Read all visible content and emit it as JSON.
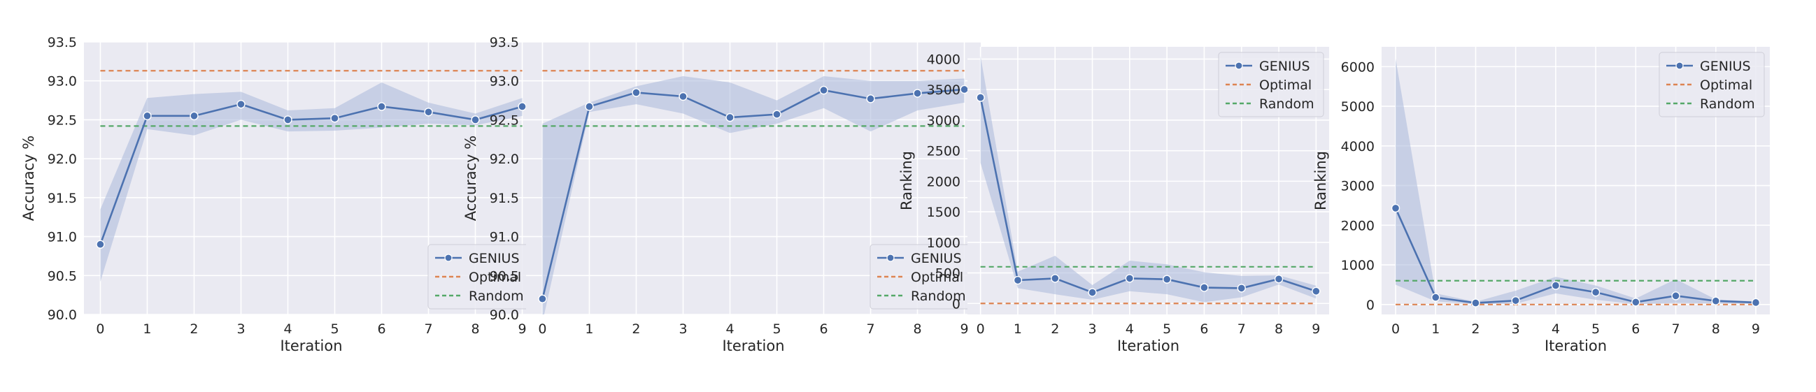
{
  "colors": {
    "background": "#eaeaf2",
    "grid": "#ffffff",
    "genius": "#4c72b0",
    "band": "#a9b8da",
    "optimal": "#dd8452",
    "random": "#55a868",
    "text": "#262626"
  },
  "chart_data": [
    {
      "type": "line",
      "xlabel": "Iteration",
      "ylabel": "Accuracy %",
      "x": [
        0,
        1,
        2,
        3,
        4,
        5,
        6,
        7,
        8,
        9
      ],
      "xticks": [
        "0",
        "1",
        "2",
        "3",
        "4",
        "5",
        "6",
        "7",
        "8",
        "9"
      ],
      "xlim": [
        -0.35,
        9.35
      ],
      "ylim": [
        90.0,
        93.5
      ],
      "yticks": [
        90.0,
        90.5,
        91.0,
        91.5,
        92.0,
        92.5,
        93.0,
        93.5
      ],
      "ytick_labels": [
        "90.0",
        "90.5",
        "91.0",
        "91.5",
        "92.0",
        "92.5",
        "93.0",
        "93.5"
      ],
      "grid": true,
      "legend_position": "bottom-right",
      "series": [
        {
          "name": "GENIUS",
          "style": "solid-marker",
          "values": [
            90.9,
            92.55,
            92.55,
            92.7,
            92.5,
            92.52,
            92.67,
            92.6,
            92.5,
            92.67
          ],
          "lower": [
            90.42,
            92.38,
            92.3,
            92.5,
            92.35,
            92.36,
            92.4,
            92.45,
            92.43,
            92.55
          ],
          "upper": [
            91.35,
            92.78,
            92.83,
            92.86,
            92.62,
            92.65,
            92.98,
            92.72,
            92.58,
            92.78
          ]
        },
        {
          "name": "Optimal",
          "style": "dashed",
          "constant": 93.13
        },
        {
          "name": "Random",
          "style": "dashed",
          "constant": 92.42
        }
      ]
    },
    {
      "type": "line",
      "xlabel": "Iteration",
      "ylabel": "Accuracy %",
      "x": [
        0,
        1,
        2,
        3,
        4,
        5,
        6,
        7,
        8,
        9
      ],
      "xticks": [
        "0",
        "1",
        "2",
        "3",
        "4",
        "5",
        "6",
        "7",
        "8",
        "9"
      ],
      "xlim": [
        -0.35,
        9.35
      ],
      "ylim": [
        90.0,
        93.5
      ],
      "yticks": [
        90.0,
        90.5,
        91.0,
        91.5,
        92.0,
        92.5,
        93.0,
        93.5
      ],
      "ytick_labels": [
        "90.0",
        "90.5",
        "91.0",
        "91.5",
        "92.0",
        "92.5",
        "93.0",
        "93.5"
      ],
      "grid": true,
      "legend_position": "bottom-right",
      "series": [
        {
          "name": "GENIUS",
          "style": "solid-marker",
          "values": [
            90.2,
            92.67,
            92.85,
            92.8,
            92.53,
            92.57,
            92.88,
            92.77,
            92.84,
            92.89
          ],
          "lower": [
            89.9,
            92.6,
            92.7,
            92.58,
            92.33,
            92.45,
            92.65,
            92.35,
            92.62,
            92.72
          ],
          "upper": [
            92.45,
            92.72,
            92.93,
            93.06,
            92.98,
            92.75,
            93.06,
            93.0,
            93.0,
            93.03
          ]
        },
        {
          "name": "Optimal",
          "style": "dashed",
          "constant": 93.13
        },
        {
          "name": "Random",
          "style": "dashed",
          "constant": 92.42
        }
      ]
    },
    {
      "type": "line",
      "xlabel": "Iteration",
      "ylabel": "Ranking",
      "x": [
        0,
        1,
        2,
        3,
        4,
        5,
        6,
        7,
        8,
        9
      ],
      "xticks": [
        "0",
        "1",
        "2",
        "3",
        "4",
        "5",
        "6",
        "7",
        "8",
        "9"
      ],
      "xlim": [
        -0.35,
        9.35
      ],
      "ylim": [
        -180,
        4200
      ],
      "yticks": [
        0,
        500,
        1000,
        1500,
        2000,
        2500,
        3000,
        3500,
        4000
      ],
      "ytick_labels": [
        "0",
        "500",
        "1000",
        "1500",
        "2000",
        "2500",
        "3000",
        "3500",
        "4000"
      ],
      "grid": true,
      "legend_position": "top-right",
      "series": [
        {
          "name": "GENIUS",
          "style": "solid-marker",
          "values": [
            3370,
            380,
            410,
            180,
            410,
            395,
            260,
            250,
            400,
            200
          ],
          "lower": [
            2300,
            250,
            150,
            60,
            200,
            150,
            20,
            100,
            310,
            80
          ],
          "upper": [
            4050,
            520,
            780,
            300,
            700,
            640,
            510,
            450,
            460,
            290
          ]
        },
        {
          "name": "Optimal",
          "style": "dashed",
          "constant": 0
        },
        {
          "name": "Random",
          "style": "dashed",
          "constant": 600
        }
      ]
    },
    {
      "type": "line",
      "xlabel": "Iteration",
      "ylabel": "Ranking",
      "x": [
        0,
        1,
        2,
        3,
        4,
        5,
        6,
        7,
        8,
        9
      ],
      "xticks": [
        "0",
        "1",
        "2",
        "3",
        "4",
        "5",
        "6",
        "7",
        "8",
        "9"
      ],
      "xlim": [
        -0.35,
        9.35
      ],
      "ylim": [
        -250,
        6500
      ],
      "yticks": [
        0,
        1000,
        2000,
        3000,
        4000,
        5000,
        6000
      ],
      "ytick_labels": [
        "0",
        "1000",
        "2000",
        "3000",
        "4000",
        "5000",
        "6000"
      ],
      "grid": true,
      "legend_position": "top-right",
      "series": [
        {
          "name": "GENIUS",
          "style": "solid-marker",
          "values": [
            2430,
            180,
            40,
            100,
            480,
            310,
            60,
            220,
            90,
            50
          ],
          "lower": [
            500,
            80,
            10,
            20,
            280,
            120,
            10,
            40,
            30,
            20
          ],
          "upper": [
            6200,
            280,
            70,
            350,
            700,
            480,
            150,
            640,
            130,
            80
          ]
        },
        {
          "name": "Optimal",
          "style": "dashed",
          "constant": 0
        },
        {
          "name": "Random",
          "style": "dashed",
          "constant": 600
        }
      ]
    }
  ]
}
